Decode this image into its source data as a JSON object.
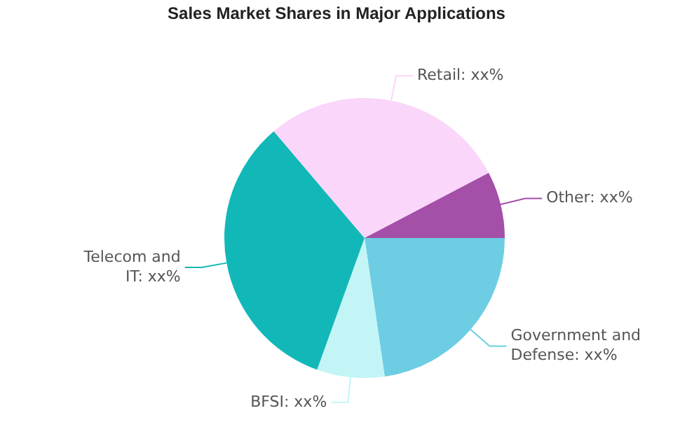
{
  "chart_data": {
    "type": "pie",
    "title": "Sales Market Shares in Major Applications",
    "categories": [
      "Government and Defense: xx%",
      "BFSI: xx%",
      "Telecom and IT: xx%",
      "Retail: xx%",
      "Other: xx%"
    ],
    "values": [
      22.7,
      7.8,
      33.3,
      28.5,
      7.7
    ],
    "colors": [
      "#6ccde3",
      "#c3f5f7",
      "#12b8b8",
      "#fad6fa",
      "#a44fa8"
    ],
    "legend": false
  }
}
